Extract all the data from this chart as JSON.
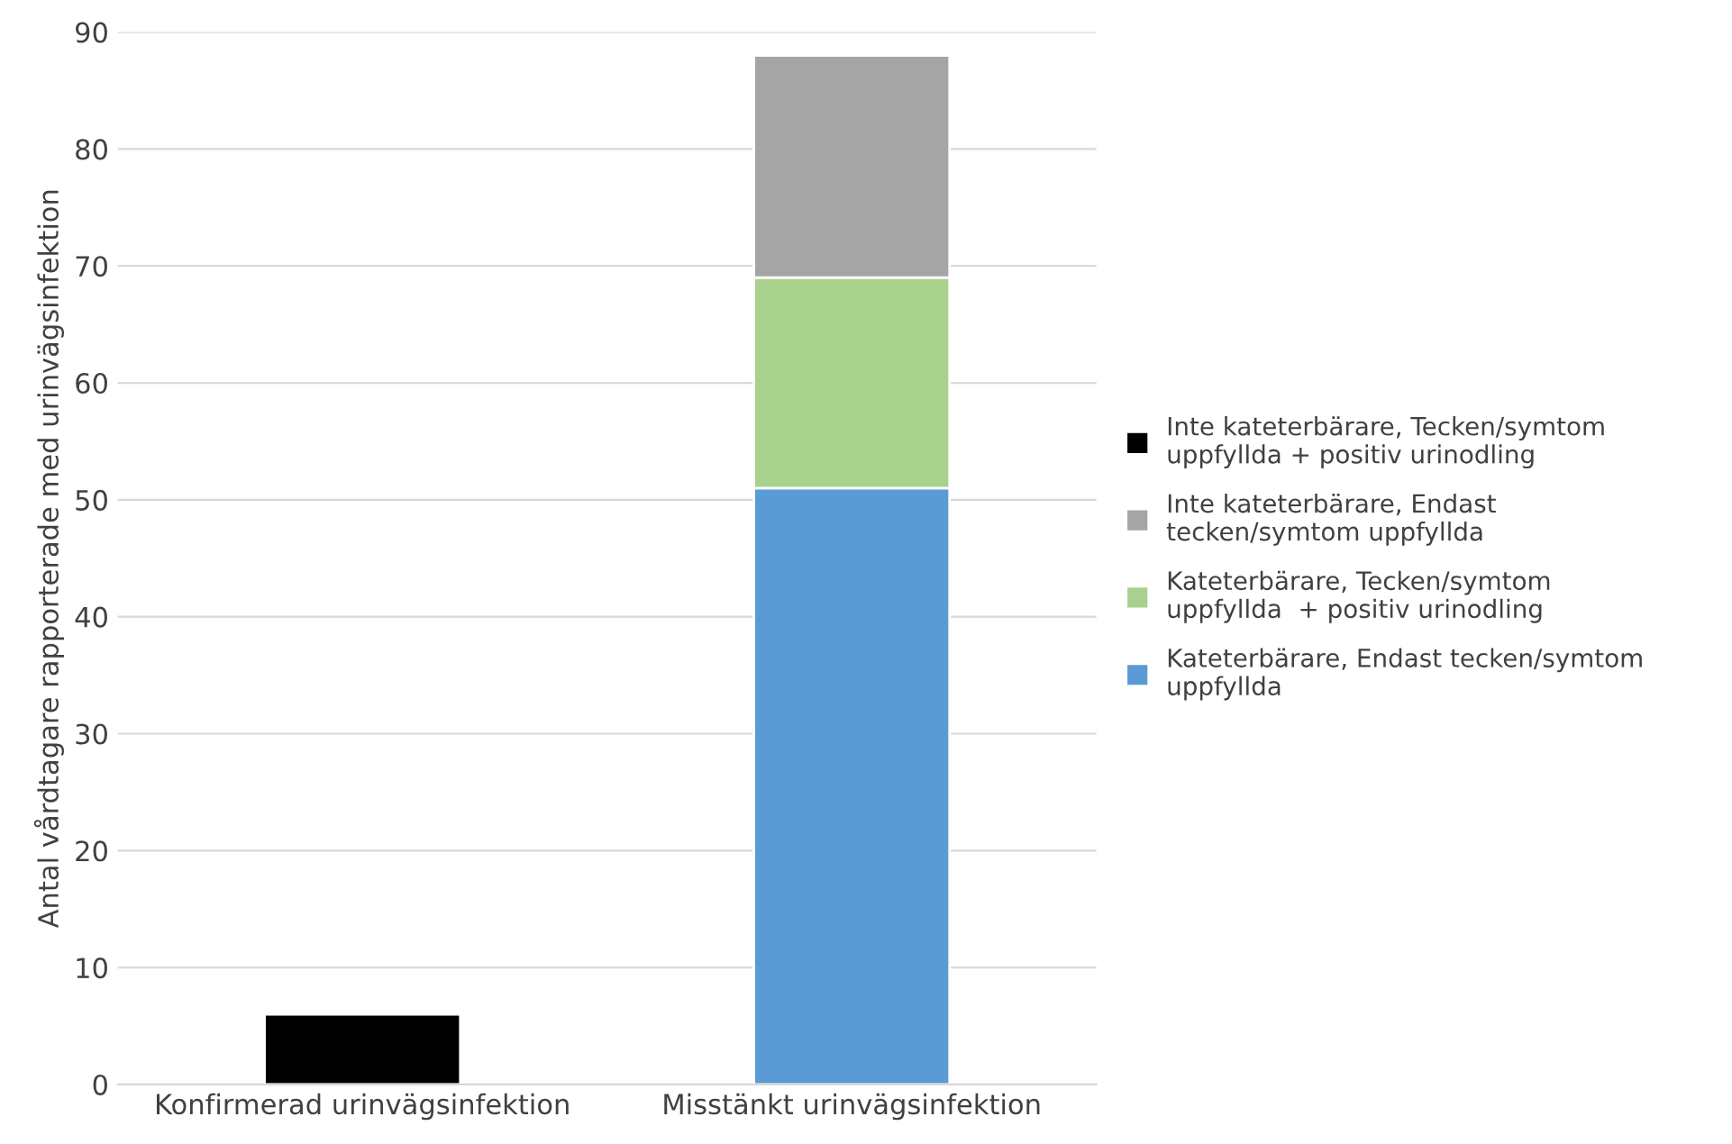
{
  "chart_data": {
    "type": "bar",
    "stacked": true,
    "ylabel": "Antal vårdtagare rapporterade med urinvägsinfektion",
    "categories": [
      "Konfirmerad urinvägsinfektion",
      "Misstänkt urinvägsinfektion"
    ],
    "series": [
      {
        "name": "Kateterbärare, Endast tecken/symtom\nuppfyllda",
        "color": "#5b9bd5",
        "values": [
          null,
          51
        ]
      },
      {
        "name": "Kateterbärare, Tecken/symtom\nuppfyllda  + positiv urinodling",
        "color": "#a9d18e",
        "values": [
          null,
          18
        ]
      },
      {
        "name": "Inte kateterbärare, Endast\ntecken/symtom uppfyllda",
        "color": "#a5a5a5",
        "values": [
          null,
          19
        ]
      },
      {
        "name": "Inte kateterbärare, Tecken/symtom\nuppfyllda + positiv urinodling",
        "color": "#000000",
        "values": [
          6,
          null
        ]
      }
    ],
    "ylim": [
      0,
      90
    ],
    "yticks": [
      0,
      10,
      20,
      30,
      40,
      50,
      60,
      70,
      80,
      90
    ],
    "grid": "y",
    "legend": "right"
  }
}
